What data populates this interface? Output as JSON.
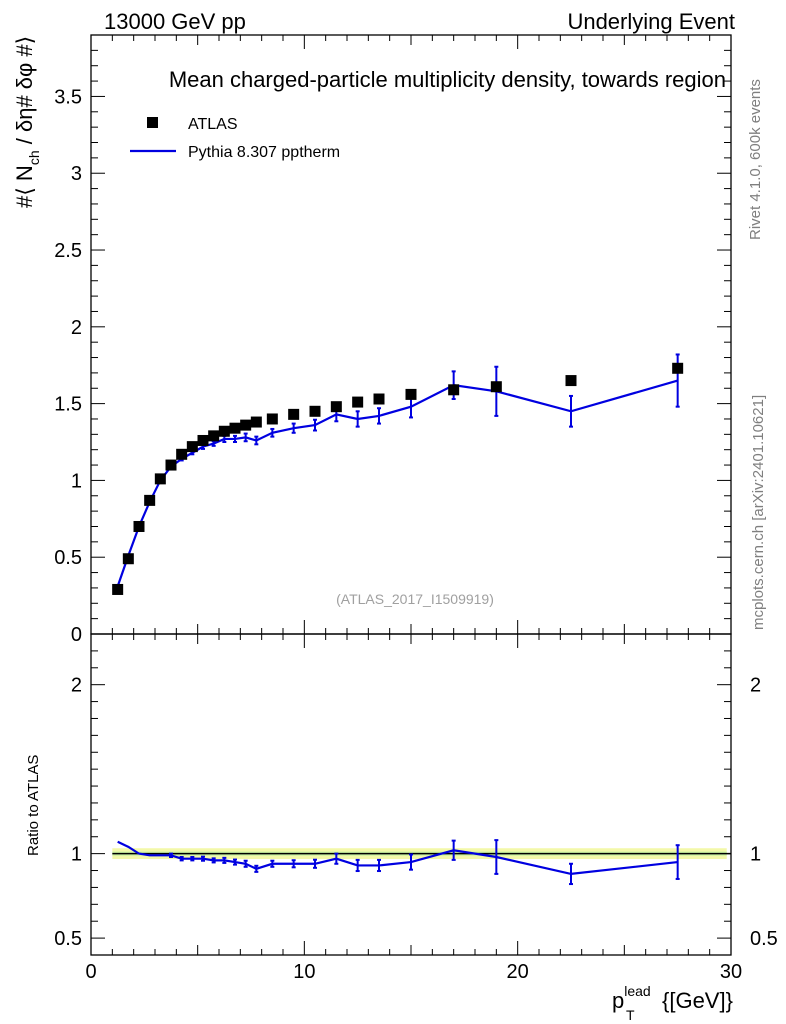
{
  "header": {
    "left": "13000 GeV pp",
    "right": "Underlying Event"
  },
  "chart_data": {
    "type": "scatter",
    "title": "Mean charged-particle multiplicity density, towards region",
    "xlabel_base": "p",
    "xlabel_sup": "lead",
    "xlabel_sub": "T",
    "xlabel_unit": "{[GeV]}",
    "ylabel": "#⟨ N_ch / δη# δφ #⟩",
    "ylabel_parts": {
      "pre": "#⟨ N",
      "sub": "ch",
      "post": " / δη# δφ #⟩"
    },
    "xlim": [
      0,
      30
    ],
    "ylim": [
      0,
      3.9
    ],
    "x_ticks": [
      "0",
      "10",
      "20",
      "30"
    ],
    "y_ticks": [
      "0",
      "0.5",
      "1",
      "1.5",
      "2",
      "2.5",
      "3",
      "3.5"
    ],
    "legend": {
      "position": "top-left",
      "entries": [
        "ATLAS",
        "Pythia 8.307 pptherm"
      ]
    },
    "analysis_tag": "(ATLAS_2017_I1509919)",
    "side_text_top": "Rivet 4.1.0,  600k events",
    "side_text_bottom": "mcplots.cern.ch [arXiv:2401.10621]",
    "series": [
      {
        "name": "ATLAS",
        "style": "markers",
        "color": "#000000",
        "x": [
          1.25,
          1.75,
          2.25,
          2.75,
          3.25,
          3.75,
          4.25,
          4.75,
          5.25,
          5.75,
          6.25,
          6.75,
          7.25,
          7.75,
          8.5,
          9.5,
          10.5,
          11.5,
          12.5,
          13.5,
          15.0,
          17.0,
          19.0,
          22.5,
          27.5
        ],
        "y": [
          0.29,
          0.49,
          0.7,
          0.87,
          1.01,
          1.1,
          1.17,
          1.22,
          1.26,
          1.29,
          1.32,
          1.34,
          1.36,
          1.38,
          1.4,
          1.43,
          1.45,
          1.48,
          1.51,
          1.53,
          1.56,
          1.59,
          1.61,
          1.65,
          1.73
        ]
      },
      {
        "name": "Pythia 8.307 pptherm",
        "style": "line",
        "color": "#0000e0",
        "x": [
          1.25,
          1.75,
          2.25,
          2.75,
          3.25,
          3.75,
          4.25,
          4.75,
          5.25,
          5.75,
          6.25,
          6.75,
          7.25,
          7.75,
          8.5,
          9.5,
          10.5,
          11.5,
          12.5,
          13.5,
          15.0,
          17.0,
          19.0,
          22.5,
          27.5
        ],
        "y": [
          0.31,
          0.51,
          0.7,
          0.86,
          1.0,
          1.09,
          1.14,
          1.18,
          1.22,
          1.24,
          1.27,
          1.27,
          1.28,
          1.26,
          1.31,
          1.34,
          1.36,
          1.43,
          1.4,
          1.42,
          1.48,
          1.62,
          1.58,
          1.45,
          1.65
        ],
        "yerr": [
          0.0,
          0.0,
          0.0,
          0.0,
          0.0,
          0.01,
          0.01,
          0.01,
          0.015,
          0.015,
          0.02,
          0.02,
          0.025,
          0.025,
          0.025,
          0.03,
          0.035,
          0.045,
          0.05,
          0.05,
          0.07,
          0.09,
          0.16,
          0.1,
          0.17
        ]
      }
    ],
    "ratio": {
      "ylabel": "Ratio to ATLAS",
      "ylim": [
        0.4,
        2.3
      ],
      "y_ticks": [
        "0.5",
        "1",
        "2"
      ],
      "band_halfwidth": 0.02,
      "y": [
        1.07,
        1.04,
        1.0,
        0.99,
        0.99,
        0.99,
        0.97,
        0.97,
        0.97,
        0.96,
        0.96,
        0.95,
        0.94,
        0.91,
        0.94,
        0.94,
        0.94,
        0.97,
        0.93,
        0.93,
        0.95,
        1.02,
        0.98,
        0.88,
        0.95
      ],
      "yerr": [
        0.0,
        0.0,
        0.0,
        0.0,
        0.0,
        0.01,
        0.01,
        0.01,
        0.012,
        0.012,
        0.015,
        0.015,
        0.018,
        0.018,
        0.018,
        0.021,
        0.024,
        0.03,
        0.033,
        0.033,
        0.045,
        0.057,
        0.1,
        0.06,
        0.1
      ]
    }
  }
}
